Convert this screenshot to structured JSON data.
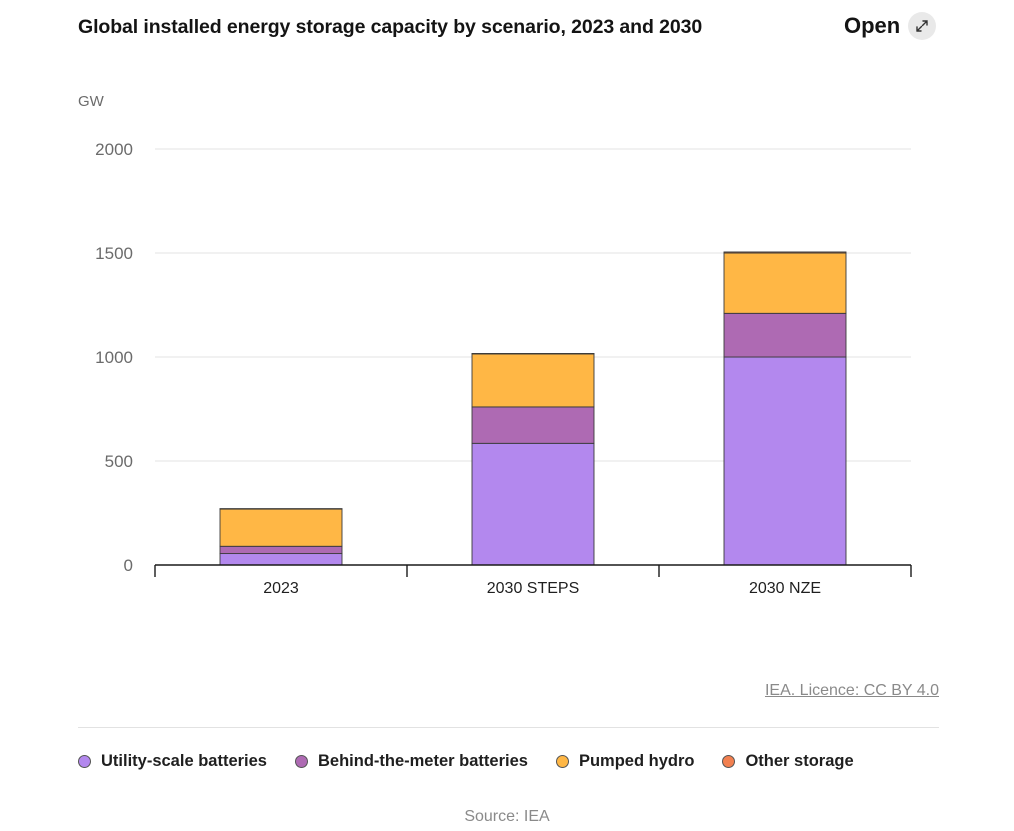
{
  "header": {
    "title": "Global installed energy storage capacity by scenario, 2023 and 2030",
    "open_label": "Open"
  },
  "chart_data": {
    "type": "bar",
    "stacked": true,
    "categories": [
      "2023",
      "2030 STEPS",
      "2030 NZE"
    ],
    "series": [
      {
        "name": "Utility-scale batteries",
        "color": "#b388ee",
        "values": [
          55,
          585,
          1000
        ]
      },
      {
        "name": "Behind-the-meter batteries",
        "color": "#ae6ab3",
        "values": [
          35,
          175,
          210
        ]
      },
      {
        "name": "Pumped hydro",
        "color": "#ffb745",
        "values": [
          180,
          255,
          290
        ]
      },
      {
        "name": "Other storage",
        "color": "#f28050",
        "values": [
          1,
          2,
          5
        ]
      }
    ],
    "ylabel": "GW",
    "ylim": [
      0,
      2000
    ],
    "yticks": [
      0,
      500,
      1000,
      1500,
      2000
    ],
    "grid": true,
    "legend_position": "bottom-left"
  },
  "footer": {
    "licence": "IEA. Licence: CC BY 4.0",
    "source": "Source: IEA"
  }
}
